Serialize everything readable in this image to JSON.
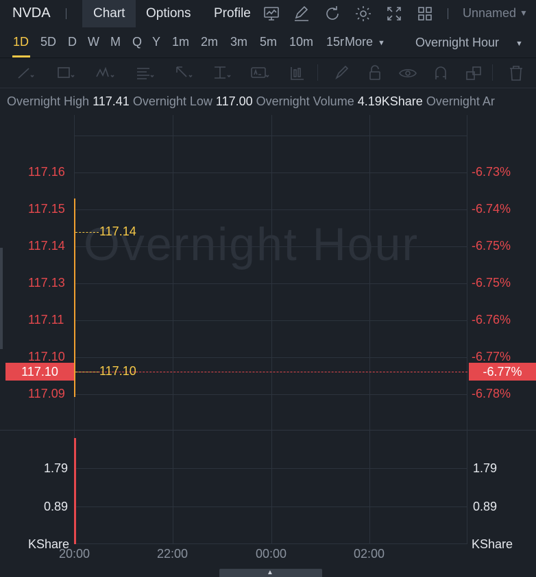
{
  "header": {
    "ticker": "NVDA",
    "tabs": [
      "Chart",
      "Options",
      "Profile"
    ],
    "active_tab": "Chart",
    "layout_name": "Unnamed"
  },
  "periods": {
    "items": [
      "1D",
      "5D",
      "D",
      "W",
      "M",
      "Q",
      "Y",
      "1m",
      "2m",
      "3m",
      "5m",
      "10m",
      "15r"
    ],
    "active": "1D",
    "more_label": "More",
    "session": "Overnight Hour"
  },
  "info": {
    "high_label": "Overnight High",
    "high_value": "117.41",
    "low_label": "Overnight Low",
    "low_value": "117.00",
    "volume_label": "Overnight Volume",
    "volume_value": "4.19KShare",
    "amount_label": "Overnight Ar"
  },
  "chart": {
    "watermark": "Overnight Hour",
    "price_left": [
      "117.16",
      "117.15",
      "117.14",
      "117.13",
      "117.11",
      "117.10",
      "117.09"
    ],
    "pct_right": [
      "-6.73%",
      "-6.74%",
      "-6.75%",
      "-6.75%",
      "-6.76%",
      "-6.77%",
      "-6.78%"
    ],
    "high_marker": "117.14",
    "last_marker": "117.10",
    "last_price_tag": "117.10",
    "last_pct_tag": "-6.77%",
    "volume_left": [
      "1.79",
      "0.89",
      "KShare"
    ],
    "volume_right": [
      "1.79",
      "0.89",
      "KShare"
    ],
    "time_labels": [
      "20:00",
      "22:00",
      "00:00",
      "02:00"
    ],
    "colors": {
      "down": "#e5484d",
      "accent": "#f7c948",
      "background": "#1c2128"
    }
  }
}
